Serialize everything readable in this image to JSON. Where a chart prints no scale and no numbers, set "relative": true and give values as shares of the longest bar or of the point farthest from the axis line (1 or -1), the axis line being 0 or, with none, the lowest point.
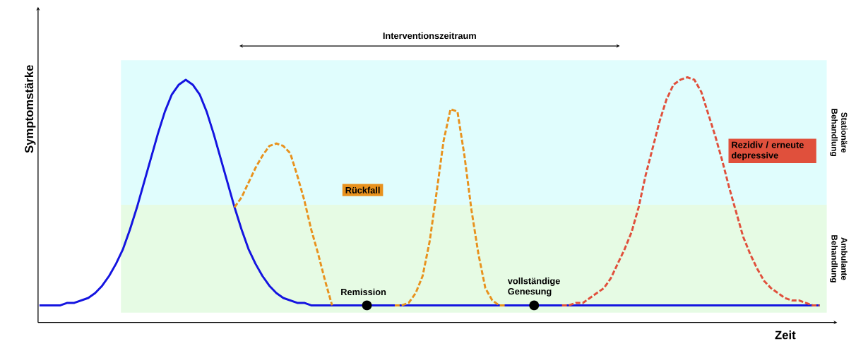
{
  "chart_data": {
    "type": "line",
    "relative": true,
    "xlabel": "Zeit",
    "ylabel": "Symptomstärke",
    "categories": [
      null,
      null,
      null,
      null,
      null,
      null,
      null,
      null,
      null,
      null,
      null,
      null,
      null,
      null,
      null,
      null,
      null,
      null,
      null,
      null,
      null,
      null,
      null,
      null,
      null,
      null,
      null,
      null,
      null,
      null,
      null,
      null,
      null,
      null,
      null,
      null,
      null,
      null,
      null,
      null,
      null,
      null,
      null,
      null,
      null,
      null,
      null,
      null,
      null,
      null,
      null,
      null,
      null,
      null,
      null,
      null,
      null,
      null,
      null,
      null,
      null,
      null,
      null,
      null,
      null,
      null,
      null,
      null,
      null,
      null,
      null,
      null,
      null,
      null,
      null,
      null,
      null,
      null,
      null,
      null,
      null,
      null,
      null,
      null,
      null,
      null,
      null,
      null,
      null,
      null,
      null,
      null,
      null,
      null,
      null,
      null,
      null,
      null,
      null,
      null,
      null,
      null,
      null,
      null,
      null,
      null,
      null,
      null,
      null,
      null,
      null,
      null,
      null
    ],
    "series": [
      {
        "color": "#1414e0",
        "line_style": "solid",
        "marker": "none",
        "values": [
          0.07,
          0.07,
          0.07,
          0.07,
          0.08,
          0.08,
          0.09,
          0.1,
          0.12,
          0.15,
          0.19,
          0.24,
          0.3,
          0.38,
          0.47,
          0.57,
          0.67,
          0.77,
          0.86,
          0.93,
          0.97,
          0.99,
          0.97,
          0.93,
          0.86,
          0.77,
          0.67,
          0.57,
          0.47,
          0.38,
          0.3,
          0.24,
          0.19,
          0.15,
          0.12,
          0.1,
          0.09,
          0.08,
          0.08,
          0.07,
          0.07,
          0.07,
          0.07,
          0.07,
          0.07,
          0.07,
          0.07,
          0.07,
          0.07,
          0.07,
          0.07,
          0.07,
          0.07,
          0.07,
          0.07,
          0.07,
          0.07,
          0.07,
          0.07,
          0.07,
          0.07,
          0.07,
          0.07,
          0.07,
          0.07,
          0.07,
          0.07,
          0.07,
          0.07,
          0.07,
          0.07,
          0.07,
          0.07,
          0.07,
          0.07,
          0.07,
          0.07,
          0.07,
          0.07,
          0.07,
          0.07,
          0.07,
          0.07,
          0.07,
          0.07,
          0.07,
          0.07,
          0.07,
          0.07,
          0.07,
          0.07,
          0.07,
          0.07,
          0.07,
          0.07,
          0.07,
          0.07,
          0.07,
          0.07,
          0.07,
          0.07,
          0.07,
          0.07,
          0.07,
          0.07,
          0.07,
          0.07,
          0.07,
          0.07,
          0.07,
          0.07,
          0.07,
          0.07
        ]
      },
      {
        "name": "Rückfall",
        "color": "#e8921e",
        "line_style": "dashed",
        "marker": "none",
        "values": [
          null,
          null,
          null,
          null,
          null,
          null,
          null,
          null,
          null,
          null,
          null,
          null,
          null,
          null,
          null,
          null,
          null,
          null,
          null,
          null,
          null,
          null,
          null,
          null,
          null,
          null,
          null,
          null,
          0.47,
          0.51,
          0.57,
          0.63,
          0.68,
          0.72,
          0.73,
          0.72,
          0.69,
          0.6,
          0.5,
          0.38,
          0.28,
          0.17,
          0.07,
          null,
          null,
          null,
          null,
          null,
          null,
          null,
          null,
          null,
          null,
          null,
          null,
          null,
          null,
          null,
          null,
          null,
          null,
          null,
          null,
          null,
          null,
          null,
          null,
          null,
          null,
          null,
          null,
          null,
          null,
          null,
          null,
          null,
          null,
          null,
          null,
          null,
          null,
          null,
          null,
          null,
          null,
          null,
          null,
          null,
          null,
          null,
          null,
          null,
          null,
          null,
          null,
          null,
          null,
          null,
          null,
          null,
          null,
          null,
          null,
          null,
          null,
          null,
          null,
          null,
          null,
          null,
          null,
          null,
          null
        ]
      },
      {
        "color": "#e8921e",
        "line_style": "dashed",
        "marker": "none",
        "values": [
          null,
          null,
          null,
          null,
          null,
          null,
          null,
          null,
          null,
          null,
          null,
          null,
          null,
          null,
          null,
          null,
          null,
          null,
          null,
          null,
          null,
          null,
          null,
          null,
          null,
          null,
          null,
          null,
          null,
          null,
          null,
          null,
          null,
          null,
          null,
          null,
          null,
          null,
          null,
          null,
          null,
          null,
          null,
          null,
          null,
          null,
          null,
          null,
          null,
          null,
          null,
          0.07,
          0.07,
          0.08,
          0.12,
          0.19,
          0.33,
          0.53,
          0.74,
          0.87,
          0.86,
          0.68,
          0.46,
          0.28,
          0.14,
          0.09,
          0.07,
          0.07,
          null,
          null,
          null,
          null,
          null,
          null,
          null,
          null,
          null,
          null,
          null,
          null,
          null,
          null,
          null,
          null,
          null,
          null,
          null,
          null,
          null,
          null,
          null,
          null,
          null,
          null,
          null,
          null,
          null,
          null,
          null,
          null,
          null,
          null,
          null,
          null,
          null,
          null,
          null,
          null,
          null,
          null,
          null,
          null,
          null
        ]
      },
      {
        "name": "Rezidiv / erneute depressive",
        "color": "#e0503c",
        "line_style": "dashed",
        "marker": "none",
        "values": [
          null,
          null,
          null,
          null,
          null,
          null,
          null,
          null,
          null,
          null,
          null,
          null,
          null,
          null,
          null,
          null,
          null,
          null,
          null,
          null,
          null,
          null,
          null,
          null,
          null,
          null,
          null,
          null,
          null,
          null,
          null,
          null,
          null,
          null,
          null,
          null,
          null,
          null,
          null,
          null,
          null,
          null,
          null,
          null,
          null,
          null,
          null,
          null,
          null,
          null,
          null,
          null,
          null,
          null,
          null,
          null,
          null,
          null,
          null,
          null,
          null,
          null,
          null,
          null,
          null,
          null,
          null,
          null,
          null,
          null,
          null,
          null,
          null,
          null,
          null,
          0.07,
          0.07,
          0.08,
          0.08,
          0.1,
          0.12,
          0.14,
          0.18,
          0.24,
          0.3,
          0.37,
          0.47,
          0.6,
          0.71,
          0.82,
          0.91,
          0.97,
          0.99,
          1.0,
          0.99,
          0.94,
          0.85,
          0.76,
          0.66,
          0.55,
          0.45,
          0.35,
          0.28,
          0.22,
          0.17,
          0.14,
          0.12,
          0.1,
          0.09,
          0.09,
          0.08,
          0.07,
          0.07
        ]
      }
    ],
    "bands": [
      {
        "axis": "y",
        "from": 0.48,
        "to": 1.07,
        "label": "Stationäre Behandlung",
        "color": "#e0fdfd"
      },
      {
        "axis": "y",
        "from": 0.04,
        "to": 0.48,
        "label": "Ambulante Behandlung",
        "color": "#e6fbe4"
      }
    ],
    "annotations": [
      "Interventionszeitraum",
      "Remission",
      "vollständige Genesung"
    ]
  }
}
